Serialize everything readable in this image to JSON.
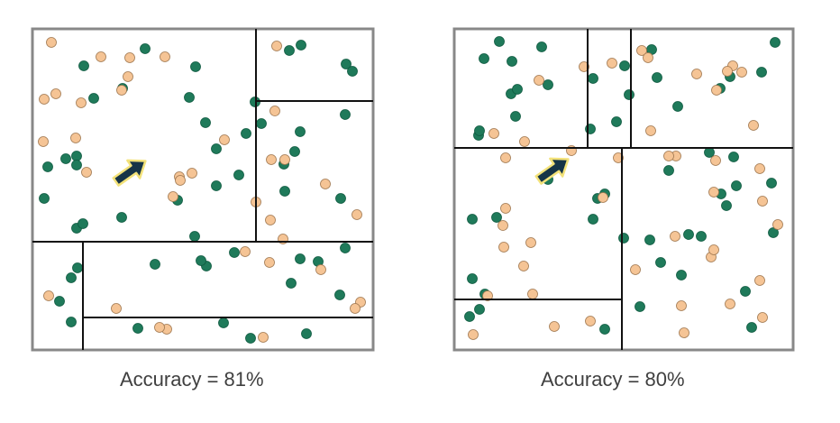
{
  "colors": {
    "green": "#1f7a5a",
    "orange": "#f5c495",
    "frame": "#888888",
    "split": "#111111",
    "arrow": "#163447",
    "arrow_glow": "#f3e27a"
  },
  "panels": [
    {
      "caption": "Accuracy = 81%",
      "green_points": [
        [
          1,
          53
        ],
        [
          2,
          52
        ],
        [
          7,
          53
        ],
        [
          8,
          52
        ],
        [
          9,
          64
        ],
        [
          13,
          37
        ],
        [
          15,
          58
        ],
        [
          16,
          40
        ],
        [
          17,
          80
        ],
        [
          20,
          81
        ],
        [
          23,
          6
        ],
        [
          23,
          51
        ],
        [
          26,
          41
        ],
        [
          30,
          9
        ],
        [
          30,
          49
        ],
        [
          34,
          30
        ],
        [
          36,
          45
        ],
        [
          40,
          5
        ],
        [
          41,
          61
        ],
        [
          42,
          34
        ],
        [
          42,
          64
        ],
        [
          45,
          41
        ],
        [
          45,
          53
        ],
        [
          47,
          61
        ],
        [
          50,
          29
        ],
        [
          51,
          33
        ],
        [
          53,
          39
        ],
        [
          57,
          8
        ],
        [
          62,
          44
        ],
        [
          64,
          45
        ],
        [
          67,
          33
        ],
        [
          72,
          30
        ],
        [
          75,
          9
        ],
        [
          75,
          25
        ],
        [
          77,
          14
        ],
        [
          79,
          18
        ],
        [
          80,
          5
        ],
        [
          81,
          1
        ],
        [
          81,
          32
        ],
        [
          82,
          29
        ],
        [
          86,
          36
        ],
        [
          87,
          7
        ],
        [
          87,
          82
        ],
        [
          88,
          7
        ],
        [
          91,
          21
        ],
        [
          94,
          9
        ],
        [
          98,
          2
        ],
        [
          98,
          8
        ],
        [
          101,
          18
        ],
        [
          103,
          5
        ]
      ],
      "orange_points": [
        [
          2,
          1
        ],
        [
          4,
          48
        ],
        [
          13,
          29
        ],
        [
          16,
          42
        ],
        [
          17,
          40
        ],
        [
          19,
          44
        ],
        [
          20,
          42
        ],
        [
          21,
          69
        ],
        [
          33,
          18
        ],
        [
          35,
          4
        ],
        [
          36,
          24
        ],
        [
          38,
          9
        ],
        [
          41,
          7
        ],
        [
          43,
          10
        ],
        [
          43,
          12
        ],
        [
          44,
          16
        ],
        [
          47,
          14
        ],
        [
          49,
          34
        ],
        [
          55,
          3
        ],
        [
          58,
          6
        ],
        [
          67,
          40
        ],
        [
          68,
          23
        ],
        [
          70,
          18
        ],
        [
          73,
          17
        ],
        [
          75,
          15
        ],
        [
          76,
          18
        ],
        [
          78,
          26
        ],
        [
          81,
          19
        ],
        [
          81,
          10
        ],
        [
          84,
          17
        ],
        [
          91,
          10
        ],
        [
          96,
          6
        ],
        [
          100,
          17
        ],
        [
          101,
          11
        ],
        [
          103,
          11
        ],
        [
          107,
          1
        ]
      ],
      "splits": [
        {
          "x1": 284,
          "y1": 32,
          "x2": 284,
          "y2": 268
        },
        {
          "x1": 284,
          "y1": 112,
          "x2": 414,
          "y2": 112
        },
        {
          "x1": 36,
          "y1": 268,
          "x2": 414,
          "y2": 268
        },
        {
          "x1": 92,
          "y1": 268,
          "x2": 92,
          "y2": 388
        },
        {
          "x1": 92,
          "y1": 352,
          "x2": 414,
          "y2": 352
        }
      ]
    },
    {
      "caption": "Accuracy = 80%",
      "green_points": [
        [
          16,
          9
        ],
        [
          17,
          63
        ],
        [
          18,
          73
        ],
        [
          19,
          67
        ],
        [
          24,
          46
        ],
        [
          27,
          52
        ],
        [
          27,
          43
        ],
        [
          36,
          11
        ],
        [
          41,
          54
        ],
        [
          50,
          18
        ],
        [
          52,
          7
        ],
        [
          53,
          28
        ],
        [
          53,
          15
        ],
        [
          55,
          17
        ],
        [
          56,
          33
        ],
        [
          56,
          20
        ],
        [
          56,
          51
        ],
        [
          62,
          15
        ],
        [
          70,
          65
        ],
        [
          71,
          48
        ],
        [
          80,
          12
        ],
        [
          82,
          14
        ],
        [
          84,
          15
        ],
        [
          88,
          62
        ],
        [
          89,
          32
        ],
        [
          94,
          33
        ],
        [
          98,
          13
        ],
        [
          99,
          20
        ],
        [
          99,
          29
        ],
        [
          100,
          25
        ],
        [
          103,
          18
        ],
        [
          103,
          35
        ],
        [
          110,
          46
        ],
        [
          117,
          40
        ],
        [
          126,
          22
        ],
        [
          131,
          35
        ],
        [
          140,
          35
        ],
        [
          144,
          48
        ],
        [
          147,
          52
        ],
        [
          152,
          29
        ],
        [
          155,
          61
        ],
        [
          155,
          62
        ],
        [
          158,
          47
        ],
        [
          162,
          52
        ],
        [
          172,
          16
        ],
        [
          173,
          1
        ],
        [
          173,
          17
        ],
        [
          179,
          17
        ],
        [
          182,
          63
        ],
        [
          183,
          32
        ]
      ],
      "orange_points": [
        [
          14,
          43
        ],
        [
          18,
          45
        ],
        [
          20,
          58
        ],
        [
          22,
          73
        ],
        [
          24,
          60
        ],
        [
          25,
          60
        ],
        [
          26,
          25
        ],
        [
          31,
          23
        ],
        [
          35,
          50
        ],
        [
          38,
          17
        ],
        [
          41,
          42
        ],
        [
          43,
          21
        ],
        [
          46,
          32
        ],
        [
          48,
          17
        ],
        [
          55,
          11
        ],
        [
          60,
          40
        ],
        [
          64,
          33
        ],
        [
          67,
          71
        ],
        [
          70,
          65
        ],
        [
          75,
          43
        ],
        [
          77,
          45
        ],
        [
          77,
          11
        ],
        [
          82,
          40
        ],
        [
          89,
          52
        ],
        [
          94,
          16
        ],
        [
          98,
          43
        ],
        [
          101,
          48
        ],
        [
          101,
          50
        ],
        [
          101,
          40
        ],
        [
          113,
          21
        ],
        [
          117,
          40
        ],
        [
          121,
          20
        ],
        [
          127,
          39
        ],
        [
          127,
          35
        ],
        [
          141,
          26
        ],
        [
          145,
          46
        ],
        [
          156,
          62
        ],
        [
          157,
          15
        ],
        [
          159,
          9
        ],
        [
          164,
          18
        ],
        [
          168,
          29
        ],
        [
          170,
          45
        ],
        [
          171,
          48
        ],
        [
          179,
          24
        ]
      ],
      "splits": [
        {
          "x1": 652,
          "y1": 32,
          "x2": 652,
          "y2": 164
        },
        {
          "x1": 700,
          "y1": 32,
          "x2": 700,
          "y2": 164
        },
        {
          "x1": 504,
          "y1": 164,
          "x2": 880,
          "y2": 164
        },
        {
          "x1": 690,
          "y1": 164,
          "x2": 690,
          "y2": 388
        },
        {
          "x1": 504,
          "y1": 332,
          "x2": 690,
          "y2": 332
        }
      ]
    }
  ]
}
